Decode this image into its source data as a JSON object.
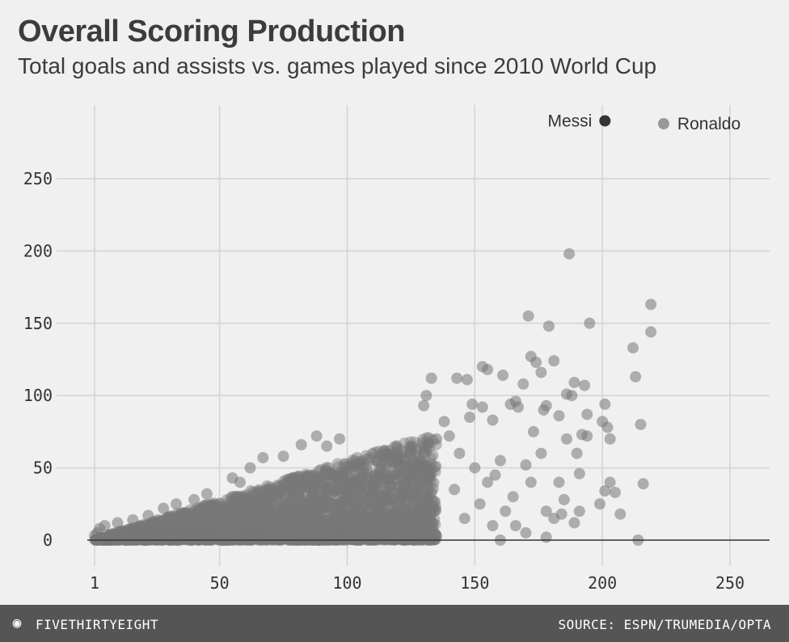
{
  "header": {
    "title": "Overall Scoring Production",
    "subtitle": "Total goals and assists vs. games played since 2010 World Cup"
  },
  "footer": {
    "brand": "FIVETHIRTYEIGHT",
    "source": "SOURCE: ESPN/TRUMEDIA/OPTA"
  },
  "colors": {
    "background": "#f0f0f0",
    "footer": "#555555",
    "grid": "#d3d3d3",
    "zero_line": "#333333",
    "player_point": "#777777",
    "messi": "#333333",
    "ronaldo": "#999999"
  },
  "chart_data": {
    "type": "scatter",
    "title": "Overall Scoring Production",
    "subtitle": "Total goals and assists vs. games played since 2010 World Cup",
    "xlabel": "",
    "ylabel": "",
    "xlim": [
      1,
      265
    ],
    "ylim": [
      -10,
      285
    ],
    "x_ticks": [
      1,
      50,
      100,
      150,
      200,
      250
    ],
    "y_ticks": [
      0,
      50,
      100,
      150,
      200,
      250
    ],
    "grid": true,
    "highlights": [
      {
        "name": "Messi",
        "x": 201,
        "y": 290,
        "color": "#333333"
      },
      {
        "name": "Ronaldo",
        "x": 224,
        "y": 288,
        "color": "#999999"
      }
    ],
    "series": [
      {
        "values_xy": [
          [
            187,
            198
          ],
          [
            219,
            163
          ],
          [
            171,
            155
          ],
          [
            179,
            148
          ],
          [
            195,
            150
          ],
          [
            219,
            144
          ],
          [
            212,
            133
          ],
          [
            172,
            127
          ],
          [
            174,
            123
          ],
          [
            181,
            124
          ],
          [
            176,
            116
          ],
          [
            169,
            108
          ],
          [
            213,
            113
          ],
          [
            143,
            112
          ],
          [
            147,
            111
          ],
          [
            153,
            120
          ],
          [
            155,
            118
          ],
          [
            161,
            114
          ],
          [
            178,
            93
          ],
          [
            189,
            109
          ],
          [
            193,
            107
          ],
          [
            186,
            101
          ],
          [
            188,
            100
          ],
          [
            133,
            112
          ],
          [
            131,
            100
          ],
          [
            130,
            93
          ],
          [
            149,
            94
          ],
          [
            153,
            92
          ],
          [
            148,
            85
          ],
          [
            157,
            83
          ],
          [
            164,
            94
          ],
          [
            166,
            96
          ],
          [
            167,
            92
          ],
          [
            177,
            90
          ],
          [
            183,
            86
          ],
          [
            194,
            87
          ],
          [
            201,
            94
          ],
          [
            186,
            70
          ],
          [
            190,
            60
          ],
          [
            192,
            73
          ],
          [
            194,
            72
          ],
          [
            200,
            82
          ],
          [
            202,
            78
          ],
          [
            203,
            70
          ],
          [
            215,
            80
          ],
          [
            191,
            46
          ],
          [
            199,
            25
          ],
          [
            201,
            34
          ],
          [
            203,
            40
          ],
          [
            205,
            33
          ],
          [
            207,
            18
          ],
          [
            216,
            39
          ],
          [
            214,
            0
          ],
          [
            173,
            75
          ],
          [
            176,
            60
          ],
          [
            170,
            52
          ],
          [
            183,
            40
          ],
          [
            185,
            28
          ],
          [
            172,
            40
          ],
          [
            178,
            20
          ],
          [
            181,
            15
          ],
          [
            184,
            18
          ],
          [
            189,
            12
          ],
          [
            191,
            20
          ],
          [
            160,
            55
          ],
          [
            158,
            45
          ],
          [
            165,
            30
          ],
          [
            162,
            20
          ],
          [
            166,
            10
          ],
          [
            170,
            5
          ],
          [
            178,
            2
          ],
          [
            155,
            40
          ],
          [
            150,
            50
          ],
          [
            144,
            60
          ],
          [
            140,
            72
          ],
          [
            138,
            82
          ],
          [
            135,
            70
          ],
          [
            142,
            35
          ],
          [
            146,
            15
          ],
          [
            152,
            25
          ],
          [
            157,
            10
          ],
          [
            160,
            0
          ],
          [
            120,
            55
          ],
          [
            118,
            45
          ],
          [
            125,
            62
          ],
          [
            128,
            52
          ],
          [
            110,
            60
          ],
          [
            105,
            50
          ],
          [
            97,
            70
          ],
          [
            92,
            65
          ],
          [
            88,
            72
          ],
          [
            82,
            66
          ],
          [
            75,
            58
          ],
          [
            67,
            57
          ],
          [
            62,
            50
          ],
          [
            55,
            43
          ],
          [
            58,
            40
          ],
          [
            45,
            32
          ],
          [
            40,
            28
          ],
          [
            33,
            25
          ],
          [
            28,
            22
          ],
          [
            22,
            17
          ],
          [
            16,
            14
          ],
          [
            10,
            12
          ],
          [
            5,
            10
          ],
          [
            3,
            8
          ],
          [
            2,
            5
          ],
          [
            1,
            3
          ]
        ]
      }
    ]
  }
}
